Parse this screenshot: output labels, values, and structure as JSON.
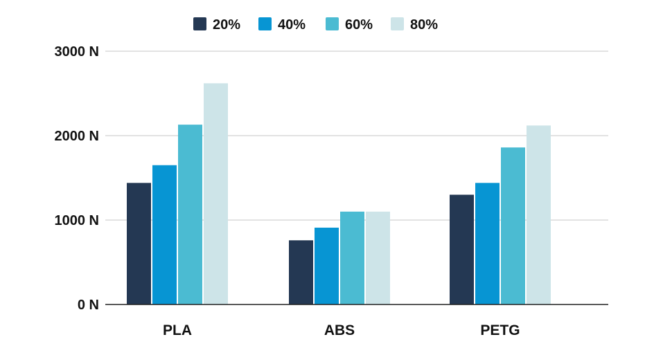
{
  "chart_data": {
    "type": "bar",
    "categories": [
      "PLA",
      "ABS",
      "PETG"
    ],
    "series": [
      {
        "name": "20%",
        "values": [
          1440,
          760,
          1300
        ]
      },
      {
        "name": "40%",
        "values": [
          1650,
          910,
          1440
        ]
      },
      {
        "name": "60%",
        "values": [
          2130,
          1100,
          1860
        ]
      },
      {
        "name": "80%",
        "values": [
          2620,
          1100,
          2120
        ]
      }
    ],
    "yticks": [
      {
        "value": 0,
        "label": "0 N"
      },
      {
        "value": 1000,
        "label": "1000 N"
      },
      {
        "value": 2000,
        "label": "2000 N"
      },
      {
        "value": 3000,
        "label": "3000 N"
      }
    ],
    "ylim": [
      0,
      3000
    ],
    "grid": true,
    "legend_position": "top-center",
    "title": "",
    "xlabel": "",
    "ylabel": ""
  },
  "colors": {
    "series": [
      "#243853",
      "#0795d3",
      "#4bbbd2",
      "#cde4e8"
    ],
    "grid": "#d9d9d9",
    "axis": "#222222"
  }
}
